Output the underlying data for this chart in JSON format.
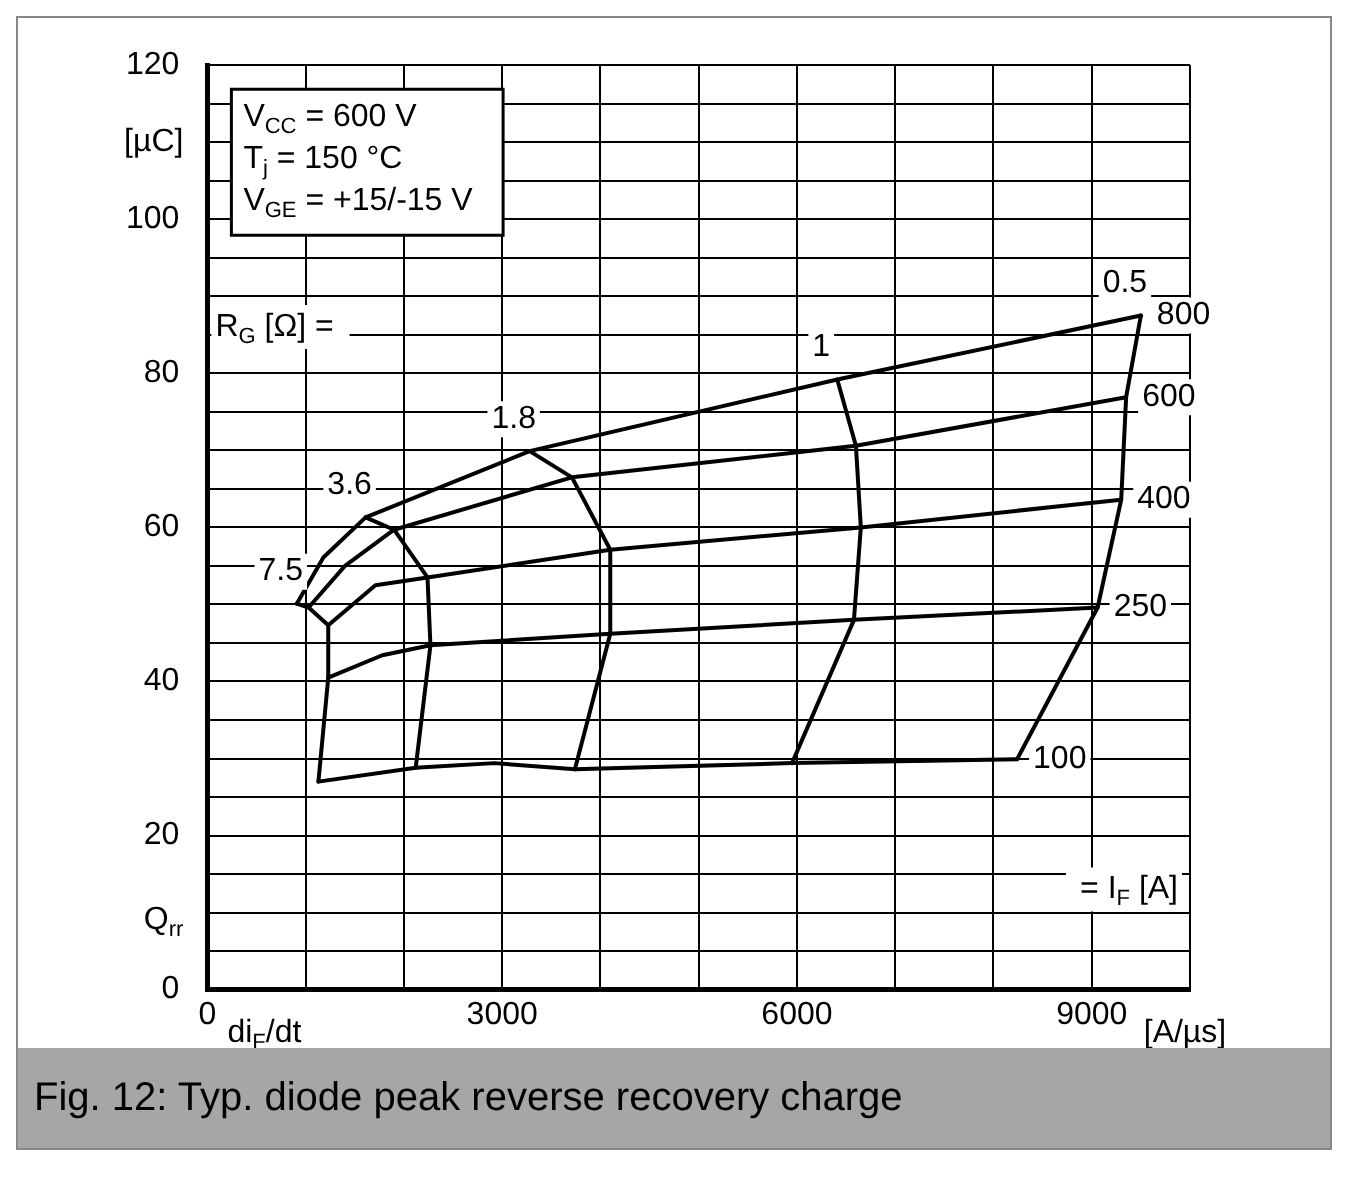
{
  "chart_data": {
    "type": "line",
    "title": "Fig. 12: Typ. diode peak reverse recovery charge",
    "xlabel": "[A/µs]",
    "ylabel": "[µC]",
    "annotations": [
      "V$_{CC}$ = 600 V",
      "T$_{j}$ = 150 °C",
      "V$_{GE}$ = +15/-15 V",
      "R$_{G}$ [Ω] =",
      "= I$_{F}$ [A]",
      "Q$_{rr}$",
      "di$_{F}$/dt"
    ],
    "xlim": [
      0,
      10000
    ],
    "xticks": [
      0,
      {
        "value": 1000,
        "label": null
      },
      {
        "value": 2000,
        "label": null
      },
      3000,
      {
        "value": 4000,
        "label": null
      },
      {
        "value": 5000,
        "label": null
      },
      6000,
      {
        "value": 7000,
        "label": null
      },
      {
        "value": 8000,
        "label": null
      },
      9000,
      {
        "value": 10000,
        "label": null
      }
    ],
    "ylim": [
      0,
      120
    ],
    "yticks": [
      0,
      {
        "value": 5,
        "label": null
      },
      {
        "value": 10,
        "label": null
      },
      {
        "value": 15,
        "label": null
      },
      20,
      {
        "value": 25,
        "label": null
      },
      {
        "value": 30,
        "label": null
      },
      {
        "value": 35,
        "label": null
      },
      40,
      {
        "value": 45,
        "label": null
      },
      {
        "value": 50,
        "label": null
      },
      {
        "value": 55,
        "label": null
      },
      60,
      {
        "value": 65,
        "label": null
      },
      {
        "value": 70,
        "label": null
      },
      {
        "value": 75,
        "label": null
      },
      80,
      {
        "value": 85,
        "label": null
      },
      {
        "value": 90,
        "label": null
      },
      {
        "value": 95,
        "label": null
      },
      100,
      {
        "value": 105,
        "label": null
      },
      {
        "value": 110,
        "label": null
      },
      {
        "value": 115,
        "label": null
      },
      120
    ],
    "grid": true,
    "legend": false,
    "marker": "none",
    "line_style": "solid",
    "series": [
      {
        "name": "100",
        "color": "#000000",
        "x": [
          1130,
          2120,
          2920,
          3740,
          5950,
          8240
        ],
        "values": [
          27.0,
          28.8,
          29.4,
          28.6,
          29.4,
          29.9
        ]
      },
      {
        "name": "250",
        "color": "#000000",
        "x": [
          1230,
          1780,
          2270,
          4100,
          6580,
          9060
        ],
        "values": [
          40.5,
          43.4,
          44.7,
          46.2,
          48.0,
          49.6
        ]
      },
      {
        "name": "400",
        "color": "#000000",
        "x": [
          1230,
          1710,
          2240,
          4100,
          6650,
          9300
        ],
        "values": [
          47.3,
          52.5,
          53.5,
          57.1,
          60.0,
          63.6
        ]
      },
      {
        "name": "600",
        "color": "#000000",
        "x": [
          1030,
          1400,
          1900,
          3710,
          6600,
          9350
        ],
        "values": [
          49.6,
          55.0,
          59.7,
          66.5,
          70.6,
          76.9
        ]
      },
      {
        "name": "800",
        "color": "#000000",
        "x": [
          910,
          1180,
          1610,
          3280,
          6410,
          9500
        ],
        "values": [
          50.1,
          56.1,
          61.3,
          69.9,
          79.2,
          87.5
        ]
      },
      {
        "name": "7.5",
        "color": "#000000",
        "x": [
          1130,
          1230,
          1230,
          1030,
          910
        ],
        "values": [
          27.0,
          40.5,
          47.3,
          49.6,
          50.1
        ]
      },
      {
        "name": "3.6",
        "color": "#000000",
        "x": [
          2120,
          2270,
          2240,
          1900,
          1610
        ],
        "values": [
          28.8,
          44.7,
          53.5,
          59.7,
          61.3
        ]
      },
      {
        "name": "1.8",
        "color": "#000000",
        "x": [
          3740,
          4100,
          4100,
          3710,
          3280
        ],
        "values": [
          28.6,
          46.2,
          57.1,
          66.5,
          69.9
        ]
      },
      {
        "name": "1",
        "color": "#000000",
        "x": [
          5950,
          6580,
          6650,
          6600,
          6410
        ],
        "values": [
          29.4,
          48.0,
          60.0,
          70.6,
          79.2
        ]
      },
      {
        "name": "0.5",
        "color": "#000000",
        "x": [
          8240,
          9060,
          9300,
          9350,
          9500
        ],
        "values": [
          29.9,
          49.6,
          63.6,
          76.9,
          87.5
        ]
      }
    ]
  }
}
